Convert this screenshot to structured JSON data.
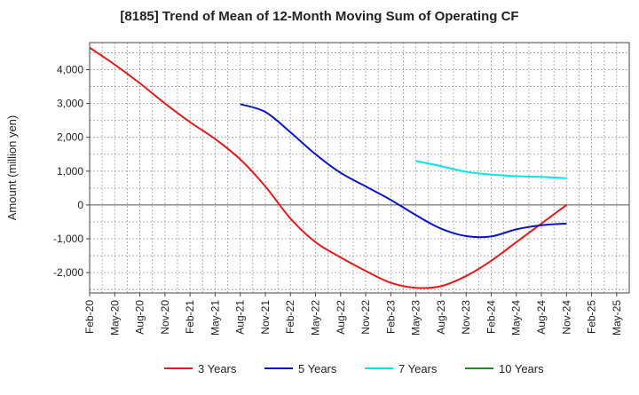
{
  "chart_data": {
    "type": "line",
    "title": "[8185]  Trend of Mean of 12-Month Moving Sum of Operating CF",
    "ylabel": "Amount (million yen)",
    "xlabel": "",
    "ylim": [
      -2600,
      4800
    ],
    "yticks": [
      -2000,
      -1000,
      0,
      1000,
      2000,
      3000,
      4000
    ],
    "ytick_labels": [
      "-2,000",
      "-1,000",
      "0",
      "1,000",
      "2,000",
      "3,000",
      "4,000"
    ],
    "xtick_labels": [
      "Feb-20",
      "May-20",
      "Aug-20",
      "Nov-20",
      "Feb-21",
      "May-21",
      "Aug-21",
      "Nov-21",
      "Feb-22",
      "May-22",
      "Aug-22",
      "Nov-22",
      "Feb-23",
      "May-23",
      "Aug-23",
      "Nov-23",
      "Feb-24",
      "May-24",
      "Aug-24",
      "Nov-24",
      "Feb-25",
      "May-25"
    ],
    "grid": true,
    "legend_position": "bottom",
    "series": [
      {
        "name": "3 Years",
        "color": "#e31a1c",
        "points": [
          [
            0,
            4650
          ],
          [
            1,
            4150
          ],
          [
            2,
            3600
          ],
          [
            3,
            3000
          ],
          [
            4,
            2450
          ],
          [
            5,
            1950
          ],
          [
            6,
            1350
          ],
          [
            7,
            550
          ],
          [
            8,
            -400
          ],
          [
            9,
            -1100
          ],
          [
            10,
            -1550
          ],
          [
            11,
            -1950
          ],
          [
            12,
            -2300
          ],
          [
            13,
            -2450
          ],
          [
            14,
            -2400
          ],
          [
            15,
            -2100
          ],
          [
            16,
            -1650
          ],
          [
            17,
            -1100
          ],
          [
            18,
            -550
          ],
          [
            19,
            0
          ]
        ]
      },
      {
        "name": "5 Years",
        "color": "#0a14c8",
        "points": [
          [
            6,
            2980
          ],
          [
            7,
            2750
          ],
          [
            8,
            2150
          ],
          [
            9,
            1500
          ],
          [
            10,
            950
          ],
          [
            11,
            550
          ],
          [
            12,
            150
          ],
          [
            13,
            -300
          ],
          [
            14,
            -700
          ],
          [
            15,
            -920
          ],
          [
            16,
            -930
          ],
          [
            17,
            -720
          ],
          [
            18,
            -600
          ],
          [
            19,
            -550
          ]
        ]
      },
      {
        "name": "7 Years",
        "color": "#00e5ee",
        "points": [
          [
            13,
            1300
          ],
          [
            14,
            1150
          ],
          [
            15,
            980
          ],
          [
            16,
            900
          ],
          [
            17,
            850
          ],
          [
            18,
            830
          ],
          [
            19,
            790
          ]
        ]
      },
      {
        "name": "10 Years",
        "color": "#1a8c1a",
        "points": []
      }
    ]
  }
}
